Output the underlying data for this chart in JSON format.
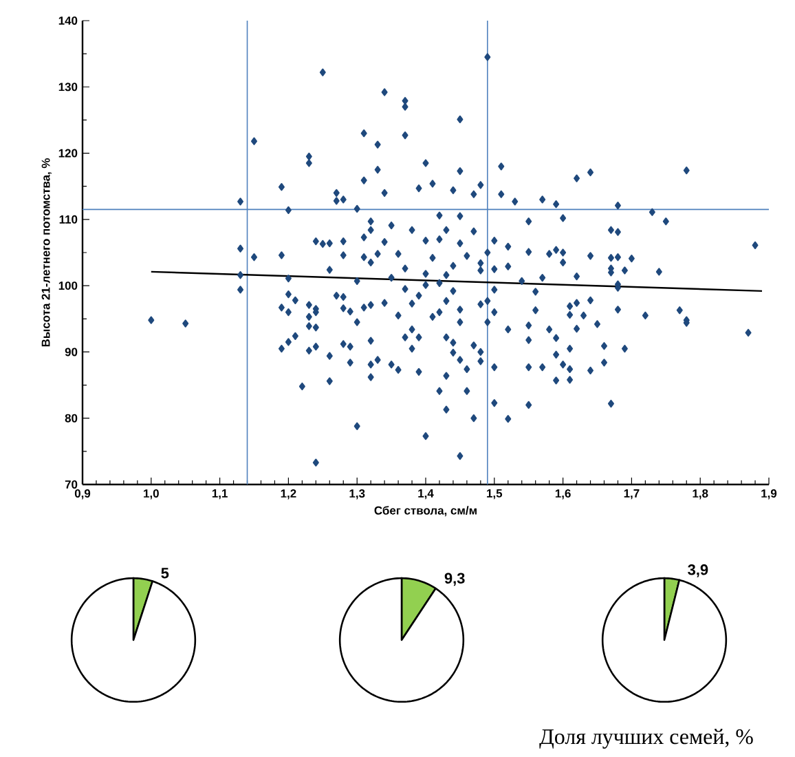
{
  "chart_data": [
    {
      "type": "scatter",
      "xlabel": "Сбег ствола,  см/м",
      "ylabel": "Высота 21-летнего потомства, %",
      "xlim": [
        0.9,
        1.9
      ],
      "ylim": [
        70,
        140
      ],
      "xticks": [
        {
          "value": 0.9,
          "label": "0,9"
        },
        {
          "value": 1.0,
          "label": "1,0"
        },
        {
          "value": 1.1,
          "label": "1,1"
        },
        {
          "value": 1.2,
          "label": "1,2"
        },
        {
          "value": 1.3,
          "label": "1,3"
        },
        {
          "value": 1.4,
          "label": "1,4"
        },
        {
          "value": 1.5,
          "label": "1,5"
        },
        {
          "value": 1.6,
          "label": "1,6"
        },
        {
          "value": 1.7,
          "label": "1,7"
        },
        {
          "value": 1.8,
          "label": "1,8"
        },
        {
          "value": 1.9,
          "label": "1,9"
        }
      ],
      "yticks": [
        70,
        80,
        90,
        100,
        110,
        120,
        130,
        140
      ],
      "ref_lines": [
        {
          "axis": "x",
          "value": 1.14,
          "color": "#4f81bd"
        },
        {
          "axis": "x",
          "value": 1.49,
          "color": "#4f81bd"
        },
        {
          "axis": "y",
          "value": 111.5,
          "color": "#4f81bd"
        }
      ],
      "series": [
        {
          "type": "scatter",
          "marker": "diamond",
          "color": "#1f497d",
          "x": [
            1.25,
            1.15,
            1.23,
            1.23,
            1.19,
            1.27,
            1.27,
            1.28,
            1.13,
            1.2,
            1.24,
            1.25,
            1.26,
            1.28,
            1.28,
            1.13,
            1.15,
            1.19,
            1.26,
            1.13,
            1.2,
            1.13,
            1.2,
            1.21,
            1.27,
            1.28,
            1.19,
            1.2,
            1.23,
            1.24,
            1.24,
            1.23,
            1.28,
            1.29,
            1.0,
            1.05,
            1.23,
            1.24,
            1.21,
            1.2,
            1.19,
            1.23,
            1.24,
            1.28,
            1.29,
            1.26,
            1.29,
            1.22,
            1.26,
            1.24,
            1.34,
            1.37,
            1.37,
            1.45,
            1.31,
            1.37,
            1.33,
            1.4,
            1.33,
            1.45,
            1.51,
            1.31,
            1.34,
            1.39,
            1.41,
            1.44,
            1.47,
            1.48,
            1.51,
            1.53,
            1.57,
            1.59,
            1.3,
            1.32,
            1.32,
            1.35,
            1.38,
            1.42,
            1.45,
            1.43,
            1.47,
            1.55,
            1.6,
            1.31,
            1.34,
            1.4,
            1.42,
            1.45,
            1.5,
            1.52,
            1.31,
            1.33,
            1.36,
            1.41,
            1.46,
            1.49,
            1.55,
            1.58,
            1.59,
            1.32,
            1.37,
            1.44,
            1.48,
            1.48,
            1.5,
            1.52,
            1.4,
            1.43,
            1.3,
            1.35,
            1.4,
            1.42,
            1.54,
            1.57,
            1.37,
            1.44,
            1.5,
            1.31,
            1.32,
            1.34,
            1.39,
            1.38,
            1.43,
            1.45,
            1.48,
            1.49,
            1.5,
            1.56,
            1.56,
            1.36,
            1.42,
            1.41,
            1.45,
            1.49,
            1.52,
            1.55,
            1.58,
            1.3,
            1.38,
            1.39,
            1.37,
            1.43,
            1.32,
            1.38,
            1.44,
            1.47,
            1.55,
            1.59,
            1.59,
            1.44,
            1.48,
            1.32,
            1.33,
            1.35,
            1.36,
            1.39,
            1.45,
            1.46,
            1.48,
            1.5,
            1.55,
            1.57,
            1.6,
            1.59,
            1.32,
            1.43,
            1.42,
            1.46,
            1.43,
            1.5,
            1.52,
            1.47,
            1.55,
            1.3,
            1.4,
            1.45,
            1.49,
            1.62,
            1.64,
            1.78,
            1.68,
            1.73,
            1.75,
            1.67,
            1.68,
            1.88,
            1.6,
            1.64,
            1.67,
            1.68,
            1.7,
            1.6,
            1.67,
            1.67,
            1.69,
            1.74,
            1.62,
            1.68,
            1.68,
            1.61,
            1.62,
            1.64,
            1.68,
            1.61,
            1.63,
            1.72,
            1.77,
            1.78,
            1.78,
            1.65,
            1.62,
            1.87,
            1.61,
            1.69,
            1.66,
            1.61,
            1.64,
            1.66,
            1.61,
            1.67
          ],
          "values": [
            132.2,
            121.8,
            119.5,
            118.5,
            114.9,
            114.0,
            112.8,
            113.0,
            112.7,
            111.4,
            106.7,
            106.3,
            106.4,
            106.7,
            104.6,
            105.6,
            104.3,
            104.6,
            102.4,
            101.6,
            101.1,
            99.4,
            98.7,
            97.8,
            98.5,
            98.3,
            96.7,
            96.0,
            97.1,
            96.5,
            96.0,
            95.3,
            96.6,
            96.1,
            94.8,
            94.3,
            93.9,
            93.7,
            92.4,
            91.5,
            90.5,
            90.2,
            90.8,
            91.2,
            90.8,
            89.4,
            88.4,
            84.8,
            85.6,
            73.3,
            129.2,
            127.9,
            127.0,
            125.1,
            123.0,
            122.7,
            121.3,
            118.5,
            117.5,
            117.3,
            118.0,
            115.9,
            114.0,
            114.7,
            115.4,
            114.4,
            113.8,
            115.2,
            113.8,
            112.7,
            113.0,
            112.3,
            111.6,
            109.7,
            108.4,
            109.1,
            108.4,
            110.6,
            110.5,
            108.4,
            108.2,
            109.7,
            110.2,
            107.3,
            106.6,
            106.8,
            107.0,
            106.4,
            106.8,
            105.9,
            104.3,
            104.8,
            104.8,
            104.2,
            104.5,
            105.0,
            105.1,
            104.8,
            105.4,
            103.5,
            102.6,
            103.0,
            103.4,
            102.3,
            102.5,
            102.9,
            101.8,
            101.6,
            100.7,
            101.2,
            100.1,
            100.4,
            100.7,
            101.2,
            99.5,
            99.2,
            99.4,
            96.7,
            97.1,
            97.4,
            98.5,
            97.3,
            97.7,
            96.4,
            97.2,
            97.7,
            96.0,
            99.1,
            96.3,
            95.5,
            96.0,
            95.3,
            94.5,
            94.5,
            93.4,
            94.0,
            93.4,
            94.5,
            93.4,
            92.2,
            92.2,
            92.2,
            91.7,
            90.5,
            91.4,
            91.0,
            91.8,
            92.1,
            89.6,
            89.9,
            90.0,
            88.1,
            88.8,
            88.1,
            87.3,
            87.0,
            88.8,
            87.4,
            88.6,
            87.7,
            87.7,
            87.7,
            88.1,
            85.7,
            86.2,
            86.4,
            84.1,
            84.1,
            81.3,
            82.3,
            79.9,
            80.0,
            82.0,
            78.8,
            77.3,
            74.3,
            134.5,
            116.2,
            117.1,
            117.4,
            112.1,
            111.1,
            109.7,
            108.4,
            108.1,
            106.1,
            105.0,
            104.5,
            104.2,
            104.3,
            104.1,
            103.5,
            102.6,
            102.0,
            102.3,
            102.1,
            101.4,
            100.2,
            99.7,
            96.9,
            97.4,
            97.8,
            96.4,
            95.6,
            95.5,
            95.5,
            96.3,
            94.8,
            94.4,
            94.2,
            93.5,
            92.9,
            90.5,
            90.5,
            90.9,
            87.4,
            87.2,
            88.4,
            85.8,
            82.2
          ]
        },
        {
          "type": "line",
          "marker": "none",
          "color": "#000000",
          "x": [
            1.0,
            1.89
          ],
          "values": [
            102.1,
            99.2
          ]
        }
      ]
    },
    {
      "type": "pie",
      "categories": [
        null,
        null
      ],
      "values": [
        5,
        95
      ],
      "colors": [
        "#92d050",
        "#ffffff"
      ],
      "value_labels": [
        "5",
        null
      ]
    },
    {
      "type": "pie",
      "categories": [
        null,
        null
      ],
      "values": [
        9.3,
        90.7
      ],
      "colors": [
        "#92d050",
        "#ffffff"
      ],
      "value_labels": [
        "9,3",
        null
      ]
    },
    {
      "type": "pie",
      "categories": [
        null,
        null
      ],
      "values": [
        3.9,
        96.1
      ],
      "colors": [
        "#92d050",
        "#ffffff"
      ],
      "value_labels": [
        "3,9",
        null
      ],
      "annotations": [
        "Доля лучших семей, %"
      ]
    }
  ]
}
